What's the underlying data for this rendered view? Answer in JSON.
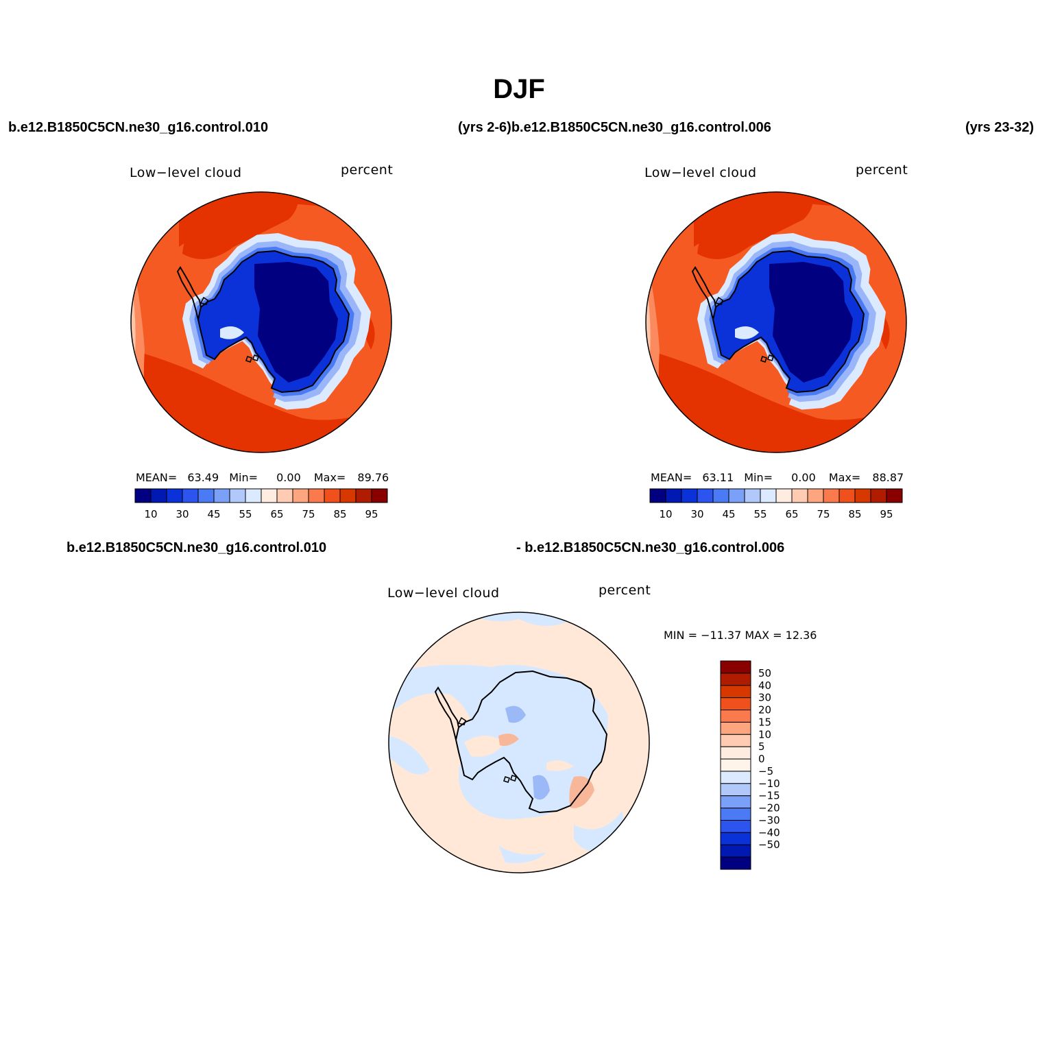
{
  "page": {
    "title": "DJF"
  },
  "headers": {
    "top_left_case": "b.e12.B1850C5CN.ne30_g16.control.010",
    "top_middle": "(yrs 2-6)b.e12.B1850C5CN.ne30_g16.control.006",
    "top_right": "(yrs 23-32)",
    "diff_left": "b.e12.B1850C5CN.ne30_g16.control.010",
    "diff_right": "- b.e12.B1850C5CN.ne30_g16.control.006"
  },
  "panels": [
    {
      "variable": "Low−level cloud",
      "units": "percent",
      "stats": {
        "mean_label": "MEAN=",
        "mean": "63.49",
        "min_label": "Min=",
        "min": "0.00",
        "max_label": "Max=",
        "max": "89.76"
      }
    },
    {
      "variable": "Low−level cloud",
      "units": "percent",
      "stats": {
        "mean_label": "MEAN=",
        "mean": "63.11",
        "min_label": "Min=",
        "min": "0.00",
        "max_label": "Max=",
        "max": "88.87"
      }
    },
    {
      "variable": "Low−level cloud",
      "units": "percent",
      "stats_text": "MIN = −11.37  MAX =   12.36"
    }
  ],
  "colorbar_field": {
    "colors": [
      "#000080",
      "#0019b3",
      "#0a32d8",
      "#2b55ee",
      "#4a7af4",
      "#7aa0f7",
      "#b0c8fa",
      "#dceaff",
      "#ffece0",
      "#ffcbb3",
      "#fca57f",
      "#fa7a4e",
      "#f0501c",
      "#d63800",
      "#b01c00",
      "#880000"
    ],
    "tick_labels": [
      "10",
      "30",
      "45",
      "55",
      "65",
      "75",
      "85",
      "95"
    ]
  },
  "colorbar_diff": {
    "colors_top_to_bottom": [
      "#880000",
      "#b01c00",
      "#d63800",
      "#f0501c",
      "#fa7a4e",
      "#fca57f",
      "#ffcbb3",
      "#ffece0",
      "#fff4ea",
      "#dceaff",
      "#b0c8fa",
      "#7aa0f7",
      "#4a7af4",
      "#2b55ee",
      "#0a32d8",
      "#0019b3",
      "#000080"
    ],
    "tick_labels": [
      "50",
      "40",
      "30",
      "20",
      "15",
      "10",
      "5",
      "0",
      "−5",
      "−10",
      "−15",
      "−20",
      "−30",
      "−40",
      "−50"
    ]
  },
  "map_colors": {
    "ocean_high": "#e43300",
    "ocean_mid": "#f55a22",
    "ocean_light": "#fb8a5e",
    "coast_pale": "#fcc4a8",
    "ice_edge": "#dceaff",
    "ice_light": "#4a7af4",
    "ice_mid": "#0a32d8",
    "ice_deep": "#000080",
    "diff_pos": "#ffe8d8",
    "diff_neg": "#d6e8ff",
    "diff_pos_strong": "#f9b79a",
    "diff_neg_strong": "#9bb8f7"
  }
}
